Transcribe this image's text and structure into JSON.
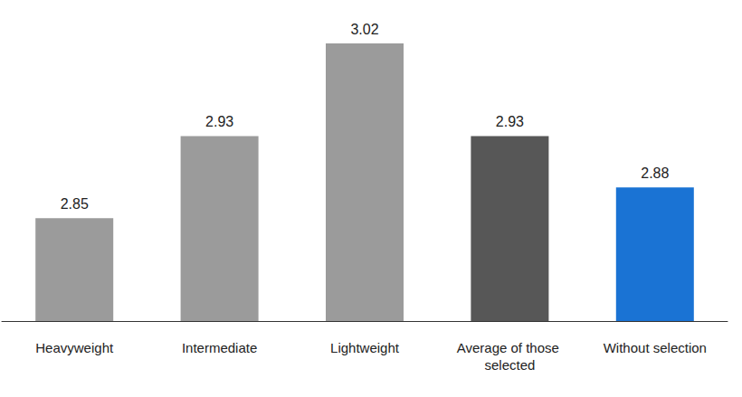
{
  "chart_data": {
    "type": "bar",
    "categories": [
      "Heavyweight",
      "Intermediate",
      "Lightweight",
      "Average of those selected",
      "Without selection"
    ],
    "values": [
      2.85,
      2.93,
      3.02,
      2.93,
      2.88
    ],
    "colors": [
      "#9b9b9b",
      "#9b9b9b",
      "#9b9b9b",
      "#575757",
      "#1a73d4"
    ],
    "ylim": [
      2.75,
      3.05
    ],
    "grid": false,
    "tick_labels": "x",
    "data_labels": true
  }
}
